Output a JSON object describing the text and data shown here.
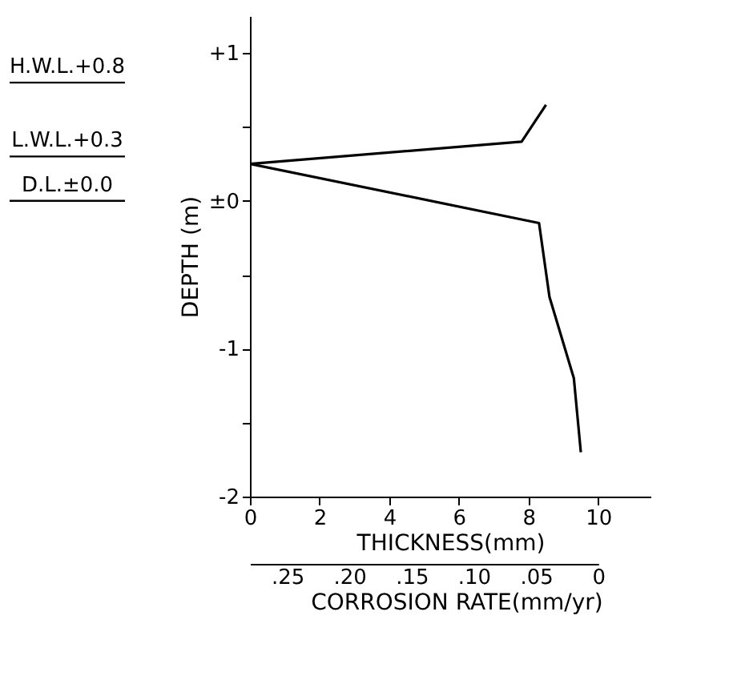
{
  "chart_data": {
    "type": "line",
    "xlabel": "THICKNESS(mm)",
    "ylabel": "DEPTH (m)",
    "x2label": "CORROSION RATE(mm/yr)",
    "x": [
      8.5,
      7.8,
      0,
      8.3,
      8.6,
      9.3,
      9.5
    ],
    "values": [
      0.65,
      0.4,
      0.25,
      -0.15,
      -0.65,
      -1.2,
      -1.7
    ],
    "color": "#000000",
    "grid": false,
    "xlim": [
      0,
      11.5
    ],
    "xticks": [
      0,
      2,
      4,
      6,
      8,
      10
    ],
    "ylim": [
      -2,
      1.25
    ],
    "yticks": [
      {
        "value": 1,
        "label": "+1"
      },
      {
        "value": 0.5,
        "label": null
      },
      {
        "value": 0,
        "label": "±0"
      },
      {
        "value": -0.5,
        "label": null
      },
      {
        "value": -1,
        "label": "-1"
      },
      {
        "value": -1.5,
        "label": null
      },
      {
        "value": -2,
        "label": "-2"
      }
    ],
    "x2lim": [
      0.28,
      0
    ],
    "x2ticks": [
      {
        "value": 0.25,
        "label": ".25"
      },
      {
        "value": 0.2,
        "label": ".20"
      },
      {
        "value": 0.15,
        "label": ".15"
      },
      {
        "value": 0.1,
        "label": ".10"
      },
      {
        "value": 0.05,
        "label": ".05"
      },
      0
    ],
    "ref_lines": [
      {
        "axis": "y",
        "value": 0.8,
        "label": "H.W.L.+0.8"
      },
      {
        "axis": "y",
        "value": 0.3,
        "label": "L.W.L.+0.3"
      },
      {
        "axis": "y",
        "value": 0.0,
        "label": "D.L.±0.0"
      }
    ]
  }
}
